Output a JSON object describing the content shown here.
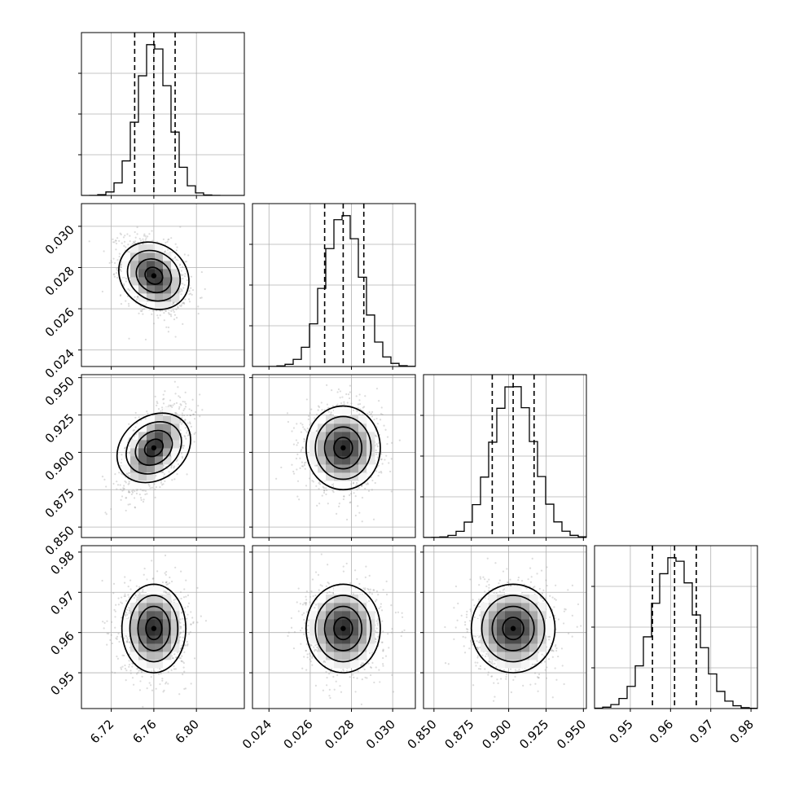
{
  "chart_data": {
    "type": "corner",
    "grid": true,
    "parameters": [
      {
        "range": [
          6.692,
          6.845
        ],
        "ticks": [
          6.72,
          6.76,
          6.8
        ],
        "tick_labels": [
          "6.72",
          "6.76",
          "6.80"
        ],
        "quantiles": [
          6.742,
          6.76,
          6.78
        ],
        "mean": 6.76,
        "sd": 0.015
      },
      {
        "range": [
          0.0232,
          0.0311
        ],
        "ticks": [
          0.024,
          0.026,
          0.028,
          0.03
        ],
        "tick_labels": [
          "0.024",
          "0.026",
          "0.028",
          "0.030"
        ],
        "quantiles": [
          0.0267,
          0.0276,
          0.0286
        ],
        "mean": 0.0276,
        "sd": 0.0009
      },
      {
        "range": [
          0.843,
          0.952
        ],
        "ticks": [
          0.85,
          0.875,
          0.9,
          0.925,
          0.95
        ],
        "tick_labels": [
          "0.850",
          "0.875",
          "0.900",
          "0.925",
          "0.950"
        ],
        "quantiles": [
          0.889,
          0.903,
          0.917
        ],
        "mean": 0.903,
        "sd": 0.014
      },
      {
        "range": [
          0.9411,
          0.9816
        ],
        "ticks": [
          0.95,
          0.96,
          0.97,
          0.98
        ],
        "tick_labels": [
          "0.95",
          "0.96",
          "0.97",
          "0.98"
        ],
        "quantiles": [
          0.9555,
          0.961,
          0.9664
        ],
        "mean": 0.961,
        "sd": 0.0055
      }
    ],
    "correlations": {
      "1-0": -0.35,
      "2-0": 0.55,
      "2-1": 0.0,
      "3-0": 0.0,
      "3-1": 0.0,
      "3-2": 0.0
    },
    "contour_levels_sigma": [
      0.5,
      1.0,
      1.5,
      2.0
    ],
    "histogram_bins": 20
  }
}
